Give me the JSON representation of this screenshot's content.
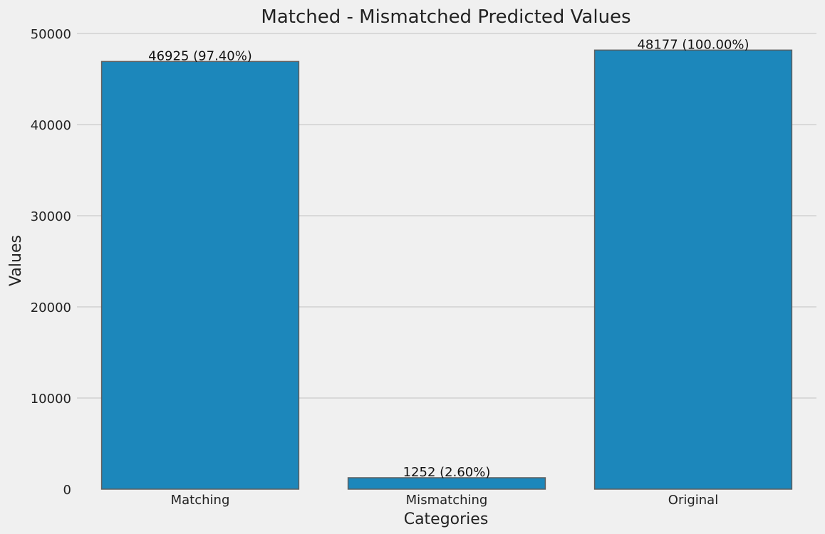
{
  "chart_data": {
    "type": "bar",
    "title": "Matched - Mismatched Predicted Values",
    "xlabel": "Categories",
    "ylabel": "Values",
    "categories": [
      "Matching",
      "Mismatching",
      "Original"
    ],
    "values": [
      46925,
      1252,
      48177
    ],
    "data_labels": [
      "46925 (97.40%)",
      "1252 (2.60%)",
      "48177 (100.00%)"
    ],
    "ylim": [
      0,
      50000
    ],
    "yticks": [
      0,
      10000,
      20000,
      30000,
      40000,
      50000
    ],
    "ytick_labels": [
      "0",
      "10000",
      "20000",
      "30000",
      "40000",
      "50000"
    ],
    "grid": "horizontal",
    "bar_color": "#1c87bb",
    "background_color": "#f0f0f0"
  }
}
